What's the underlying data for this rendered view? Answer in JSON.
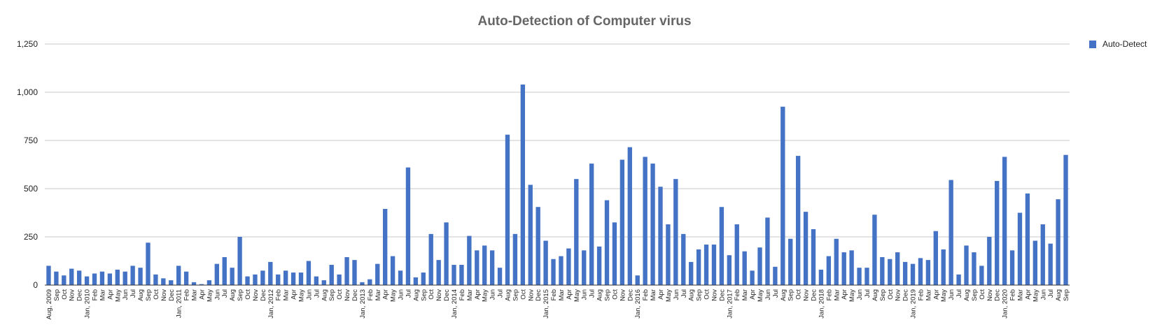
{
  "chart_data": {
    "type": "bar",
    "title": "Auto-Detection of Computer virus",
    "xlabel": "",
    "ylabel": "",
    "ylim": [
      0,
      1250
    ],
    "yticks": [
      0,
      250,
      500,
      750,
      1000,
      1250
    ],
    "ytick_labels": [
      "0",
      "250",
      "500",
      "750",
      "1,000",
      "1,250"
    ],
    "grid": true,
    "legend_position": "top-right",
    "color": "#4472C4",
    "categories": [
      "Aug, 2009",
      "Sep",
      "Oct",
      "Nov",
      "Dec",
      "Jan, 2010",
      "Feb",
      "Mar",
      "Apr",
      "May",
      "Jun",
      "Jul",
      "Aug",
      "Sep",
      "Oct",
      "Nov",
      "Dec",
      "Jan, 2011",
      "Feb",
      "Mar",
      "Apr",
      "May",
      "Jun",
      "Jul",
      "Aug",
      "Sep",
      "Oct",
      "Nov",
      "Dec",
      "Jan, 2012",
      "Feb",
      "Mar",
      "Apr",
      "May",
      "Jun",
      "Jul",
      "Aug",
      "Sep",
      "Oct",
      "Nov",
      "Dec",
      "Jan, 2013",
      "Feb",
      "Mar",
      "Apr",
      "May",
      "Jun",
      "Jul",
      "Aug",
      "Sep",
      "Oct",
      "Nov",
      "Dec",
      "Jan, 2014",
      "Feb",
      "Mar",
      "Apr",
      "May",
      "Jun",
      "Jul",
      "Aug",
      "Sep",
      "Oct",
      "Nov",
      "Dec",
      "Jan, 2015",
      "Feb",
      "Mar",
      "Apr",
      "May",
      "Jun",
      "Jul",
      "Aug",
      "Sep",
      "Oct",
      "Nov",
      "Dec",
      "Jan, 2016",
      "Feb",
      "Mar",
      "Apr",
      "May",
      "Jun",
      "Jul",
      "Aug",
      "Sep",
      "Oct",
      "Nov",
      "Dec",
      "Jan, 2017",
      "Feb",
      "Mar",
      "Apr",
      "May",
      "Jun",
      "Jul",
      "Aug",
      "Sep",
      "Oct",
      "Nov",
      "Dec",
      "Jan, 2018",
      "Feb",
      "Mar",
      "Apr",
      "May",
      "Jun",
      "Jul",
      "Aug",
      "Sep",
      "Oct",
      "Nov",
      "Dec",
      "Jan, 2019",
      "Feb",
      "Mar",
      "Apr",
      "May",
      "Jun",
      "Jul",
      "Aug",
      "Sep",
      "Oct",
      "Nov",
      "Dec",
      "Jan, 2020",
      "Feb",
      "Mar",
      "Apr",
      "May",
      "Jun",
      "Jul",
      "Aug",
      "Sep"
    ],
    "series": [
      {
        "name": "Auto-Detect",
        "values": [
          100,
          70,
          50,
          85,
          75,
          45,
          60,
          70,
          60,
          80,
          70,
          100,
          90,
          220,
          55,
          35,
          25,
          100,
          70,
          15,
          5,
          25,
          110,
          145,
          90,
          250,
          45,
          55,
          75,
          120,
          55,
          75,
          65,
          65,
          125,
          45,
          25,
          105,
          55,
          145,
          130,
          15,
          30,
          110,
          395,
          150,
          75,
          610,
          40,
          65,
          265,
          130,
          325,
          105,
          105,
          255,
          180,
          205,
          180,
          90,
          780,
          265,
          1040,
          520,
          405,
          230,
          135,
          150,
          190,
          550,
          180,
          630,
          200,
          440,
          325,
          650,
          715,
          50,
          665,
          630,
          510,
          315,
          550,
          265,
          120,
          185,
          210,
          210,
          405,
          155,
          315,
          175,
          75,
          195,
          350,
          95,
          925,
          240,
          670,
          380,
          290,
          80,
          150,
          240,
          170,
          180,
          90,
          90,
          365,
          145,
          135,
          170,
          120,
          110,
          140,
          130,
          280,
          185,
          545,
          55,
          205,
          170,
          100,
          250,
          540,
          665,
          180,
          375,
          475,
          230,
          315,
          215,
          445,
          675
        ]
      }
    ]
  }
}
